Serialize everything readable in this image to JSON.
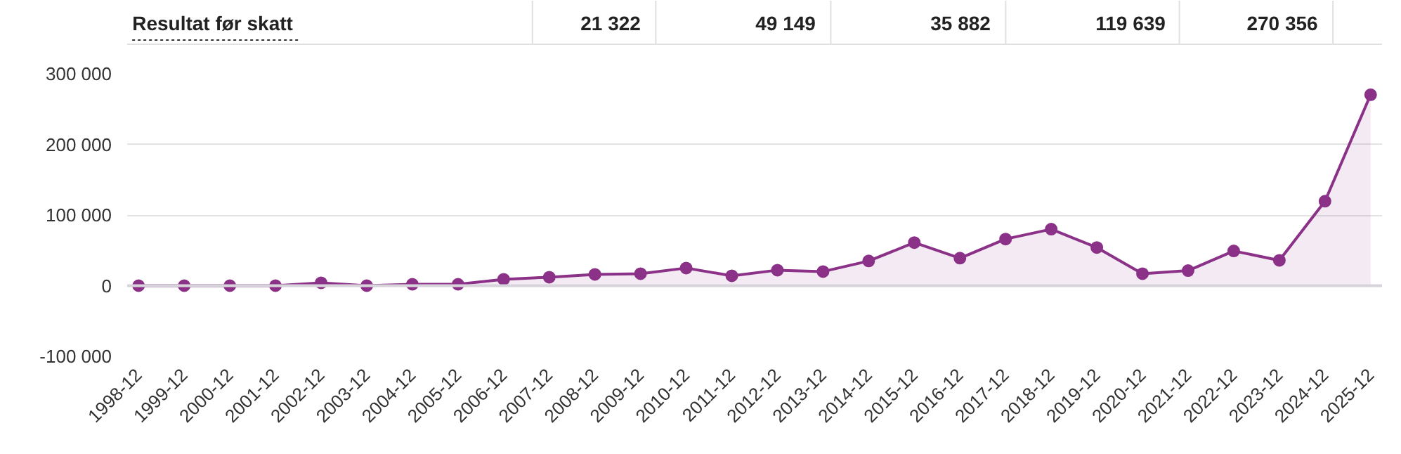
{
  "chart_data": {
    "type": "area",
    "title": "Resultat før skatt",
    "categories": [
      "1998-12",
      "1999-12",
      "2000-12",
      "2001-12",
      "2002-12",
      "2003-12",
      "2004-12",
      "2005-12",
      "2006-12",
      "2007-12",
      "2008-12",
      "2009-12",
      "2010-12",
      "2011-12",
      "2012-12",
      "2013-12",
      "2014-12",
      "2015-12",
      "2016-12",
      "2017-12",
      "2018-12",
      "2019-12",
      "2020-12",
      "2021-12",
      "2022-12",
      "2023-12",
      "2024-12",
      "2025-12"
    ],
    "series": [
      {
        "color": "#8b3188",
        "values": [
          0,
          0,
          0,
          0,
          4000,
          0,
          2000,
          2000,
          9000,
          12000,
          16000,
          17000,
          25000,
          14000,
          22000,
          20000,
          35000,
          61000,
          39000,
          66000,
          80000,
          54000,
          17000,
          21322,
          49149,
          35882,
          119639,
          270356
        ]
      }
    ],
    "annotations": [
      "21 322",
      "49 149",
      "35 882",
      "119 639",
      "270 356"
    ],
    "ylim": [
      -100000,
      300000
    ],
    "yticks": [
      {
        "value": -100000,
        "label": "-100 000"
      },
      0,
      {
        "value": 100000,
        "label": "100 000"
      },
      {
        "value": 200000,
        "label": "200 000"
      },
      {
        "value": 300000,
        "label": "300 000"
      }
    ],
    "grid": "y",
    "marker": "circle",
    "line_style": "solid"
  }
}
